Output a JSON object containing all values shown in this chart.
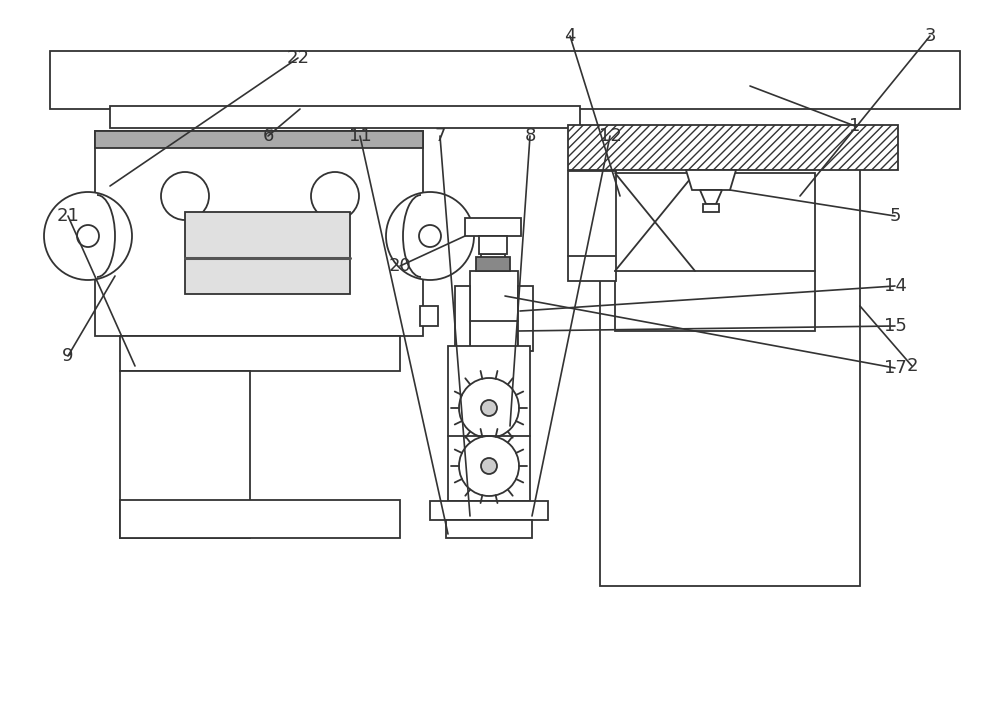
{
  "bg_color": "#ffffff",
  "lc": "#333333",
  "lw": 1.3,
  "figsize": [
    10.0,
    7.26
  ],
  "dpi": 100,
  "label_fs": 13
}
